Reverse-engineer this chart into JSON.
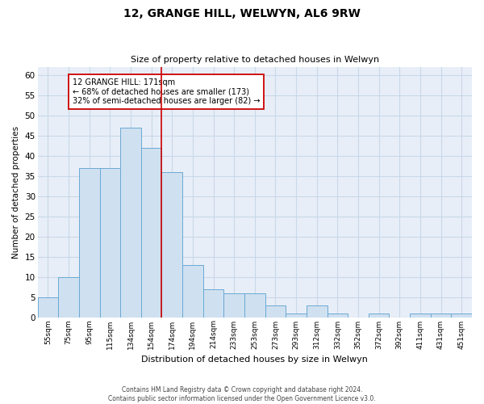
{
  "title1": "12, GRANGE HILL, WELWYN, AL6 9RW",
  "title2": "Size of property relative to detached houses in Welwyn",
  "xlabel": "Distribution of detached houses by size in Welwyn",
  "ylabel": "Number of detached properties",
  "categories": [
    "55sqm",
    "75sqm",
    "95sqm",
    "115sqm",
    "134sqm",
    "154sqm",
    "174sqm",
    "194sqm",
    "214sqm",
    "233sqm",
    "253sqm",
    "273sqm",
    "293sqm",
    "312sqm",
    "332sqm",
    "352sqm",
    "372sqm",
    "392sqm",
    "411sqm",
    "431sqm",
    "451sqm"
  ],
  "values": [
    5,
    10,
    37,
    37,
    47,
    42,
    36,
    13,
    7,
    6,
    6,
    3,
    1,
    3,
    1,
    0,
    1,
    0,
    1,
    1,
    1
  ],
  "bar_color": "#cfe0f0",
  "bar_edge_color": "#6aaad4",
  "vline_color": "#cc0000",
  "annotation_text": "12 GRANGE HILL: 171sqm\n← 68% of detached houses are smaller (173)\n32% of semi-detached houses are larger (82) →",
  "annotation_box_color": "#ffffff",
  "annotation_box_edge": "#cc0000",
  "ylim": [
    0,
    62
  ],
  "yticks": [
    0,
    5,
    10,
    15,
    20,
    25,
    30,
    35,
    40,
    45,
    50,
    55,
    60
  ],
  "grid_color": "#c8d8e8",
  "background_color": "#e8eef8",
  "footer1": "Contains HM Land Registry data © Crown copyright and database right 2024.",
  "footer2": "Contains public sector information licensed under the Open Government Licence v3.0."
}
